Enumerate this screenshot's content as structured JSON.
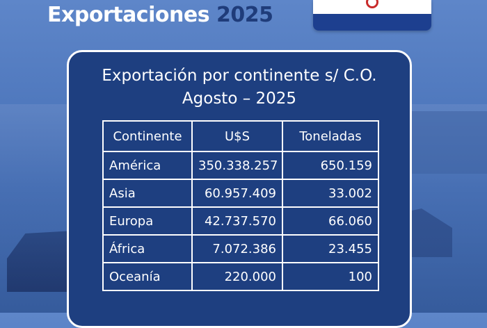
{
  "header": {
    "word1": "Exportaciones",
    "word2": "2025"
  },
  "flag": {
    "icon": "paraguay-flag-icon"
  },
  "card": {
    "title_line1": "Exportación por continente s/ C.O.",
    "title_line2": "Agosto – 2025"
  },
  "table": {
    "columns": [
      "Continente",
      "U$S",
      "Toneladas"
    ],
    "rows": [
      {
        "continente": "América",
        "usd": "350.338.257",
        "toneladas": "650.159"
      },
      {
        "continente": "Asia",
        "usd": "60.957.409",
        "toneladas": "33.002"
      },
      {
        "continente": "Europa",
        "usd": "42.737.570",
        "toneladas": "66.060"
      },
      {
        "continente": "África",
        "usd": "7.072.386",
        "toneladas": "23.455"
      },
      {
        "continente": "Oceanía",
        "usd": "220.000",
        "toneladas": "100"
      }
    ]
  },
  "colors": {
    "card_bg": "#1e3f80",
    "header_accent": "#1f3c7a",
    "flag_red": "#c82a2a",
    "flag_blue": "#1d3f8f"
  }
}
